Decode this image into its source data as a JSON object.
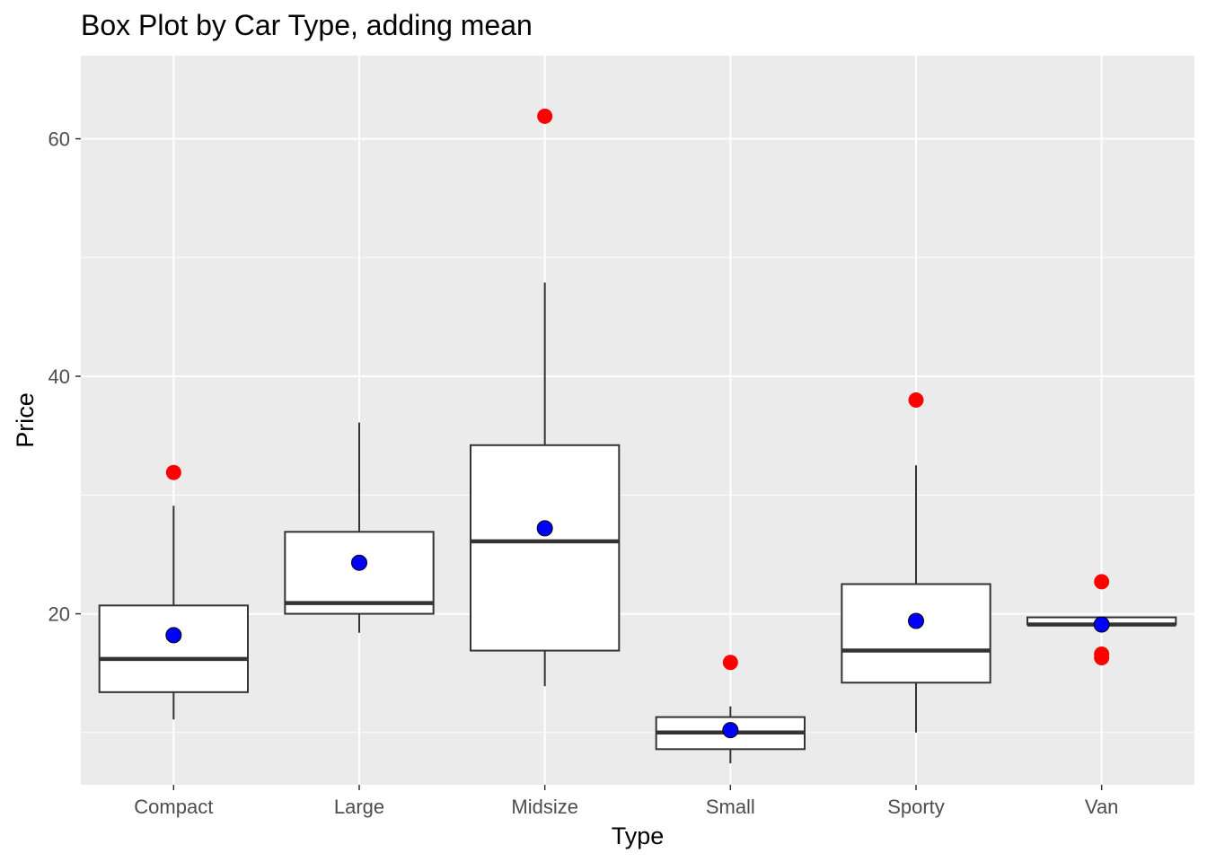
{
  "chart_data": {
    "type": "box",
    "title": "Box Plot by Car Type, adding mean",
    "xlabel": "Type",
    "ylabel": "Price",
    "ylim": [
      5.6,
      67
    ],
    "yticks": [
      20,
      40,
      60
    ],
    "grid": true,
    "categories": [
      "Compact",
      "Large",
      "Midsize",
      "Small",
      "Sporty",
      "Van"
    ],
    "boxes": [
      {
        "category": "Compact",
        "lower_whisker": 11.1,
        "q1": 13.4,
        "median": 16.2,
        "q3": 20.7,
        "upper_whisker": 29.1,
        "mean": 18.2,
        "outliers": [
          31.9
        ]
      },
      {
        "category": "Large",
        "lower_whisker": 18.4,
        "q1": 20.0,
        "median": 20.9,
        "q3": 26.9,
        "upper_whisker": 36.1,
        "mean": 24.3,
        "outliers": []
      },
      {
        "category": "Midsize",
        "lower_whisker": 13.9,
        "q1": 16.9,
        "median": 26.1,
        "q3": 34.2,
        "upper_whisker": 47.9,
        "mean": 27.2,
        "outliers": [
          61.9
        ]
      },
      {
        "category": "Small",
        "lower_whisker": 7.4,
        "q1": 8.6,
        "median": 10.0,
        "q3": 11.3,
        "upper_whisker": 12.2,
        "mean": 10.2,
        "outliers": [
          15.9
        ]
      },
      {
        "category": "Sporty",
        "lower_whisker": 10.0,
        "q1": 14.2,
        "median": 16.9,
        "q3": 22.5,
        "upper_whisker": 32.5,
        "mean": 19.4,
        "outliers": [
          38.0
        ]
      },
      {
        "category": "Van",
        "lower_whisker": 19.0,
        "q1": 19.1,
        "median": 19.1,
        "q3": 19.7,
        "upper_whisker": 19.7,
        "mean": 19.1,
        "outliers": [
          22.7,
          16.6,
          16.3
        ]
      }
    ],
    "colors": {
      "panel": "#ebebeb",
      "grid": "#ffffff",
      "box_fill": "#ffffff",
      "box_line": "#333333",
      "outlier": "#ff0000",
      "mean": "#0000ff"
    }
  }
}
